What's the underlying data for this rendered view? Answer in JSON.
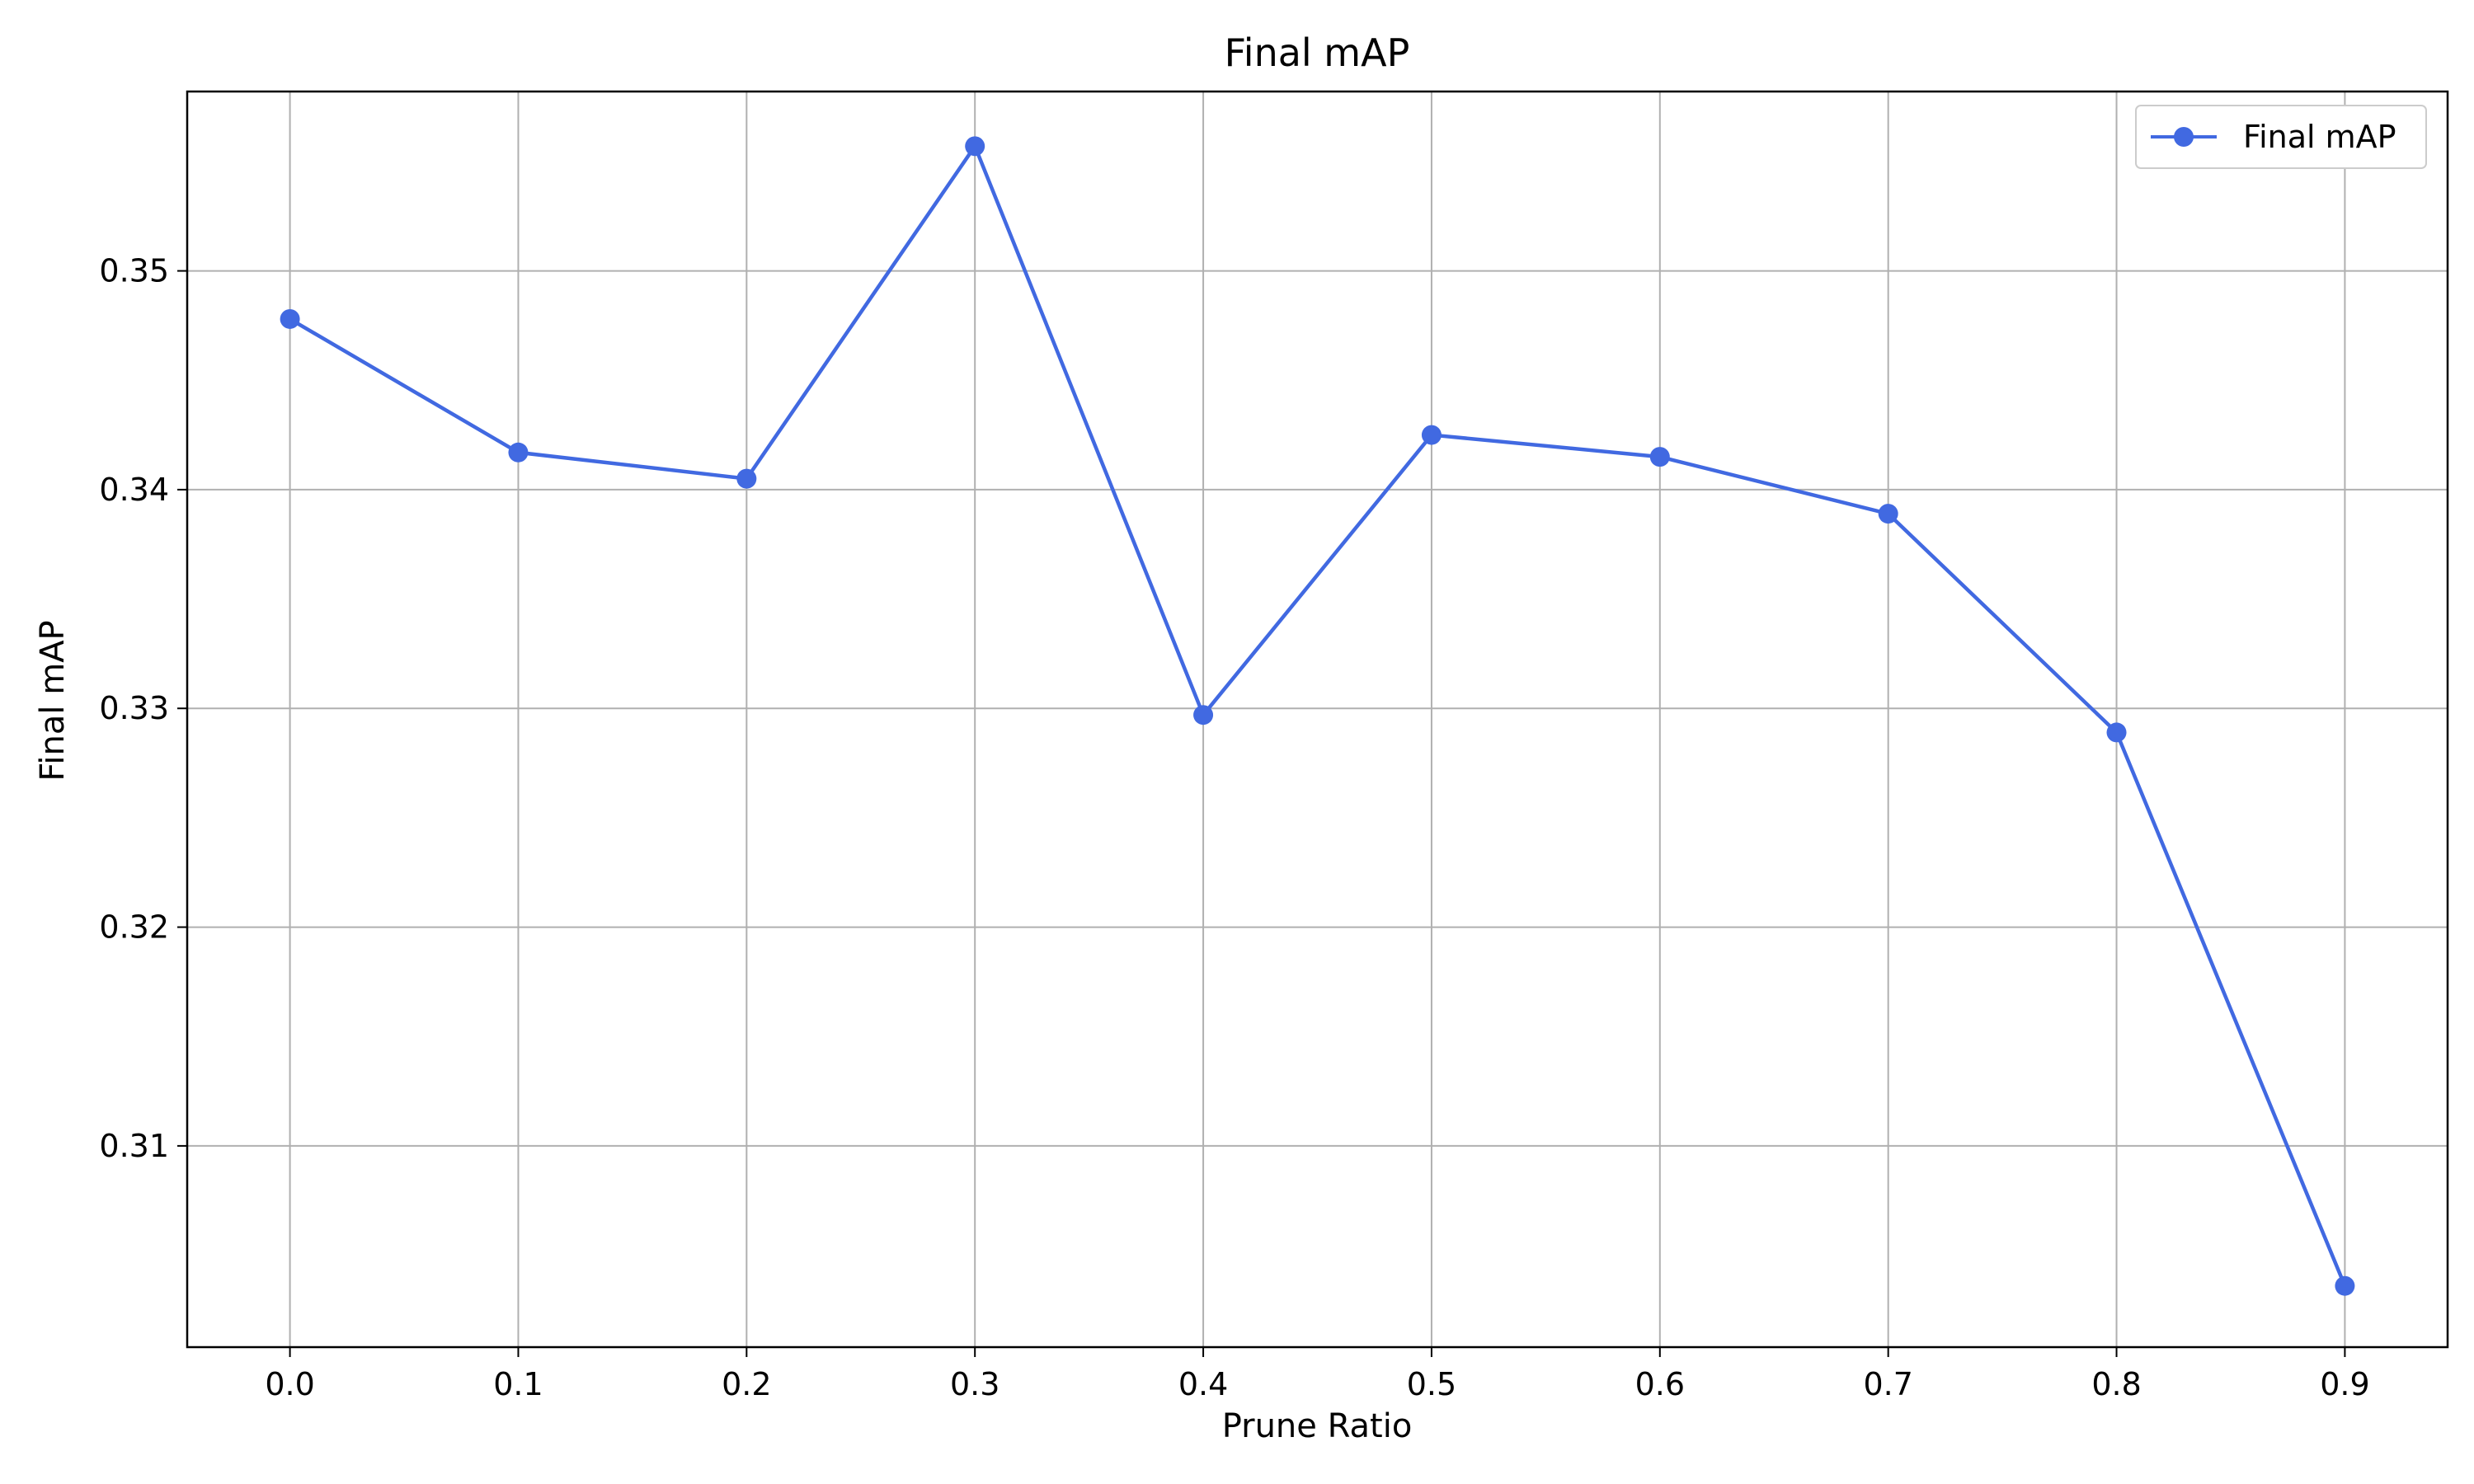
{
  "chart_data": {
    "type": "line",
    "title": "Final mAP",
    "xlabel": "Prune Ratio",
    "ylabel": "Final mAP",
    "x": [
      0.0,
      0.1,
      0.2,
      0.3,
      0.4,
      0.5,
      0.6,
      0.7,
      0.8,
      0.9
    ],
    "x_tick_labels": [
      "0.0",
      "0.1",
      "0.2",
      "0.3",
      "0.4",
      "0.5",
      "0.6",
      "0.7",
      "0.8",
      "0.9"
    ],
    "y_ticks": [
      0.31,
      0.32,
      0.33,
      0.34,
      0.35
    ],
    "y_tick_labels": [
      "0.31",
      "0.32",
      "0.33",
      "0.34",
      "0.35"
    ],
    "xlim": [
      -0.045,
      0.945
    ],
    "ylim": [
      0.3008,
      0.3582
    ],
    "grid": true,
    "legend_position": "top-right",
    "series": [
      {
        "name": "Final mAP",
        "color": "#4169E1",
        "marker": "circle",
        "values": [
          0.3478,
          0.3417,
          0.3405,
          0.3557,
          0.3297,
          0.3425,
          0.3415,
          0.3389,
          0.3289,
          0.3036
        ]
      }
    ]
  }
}
